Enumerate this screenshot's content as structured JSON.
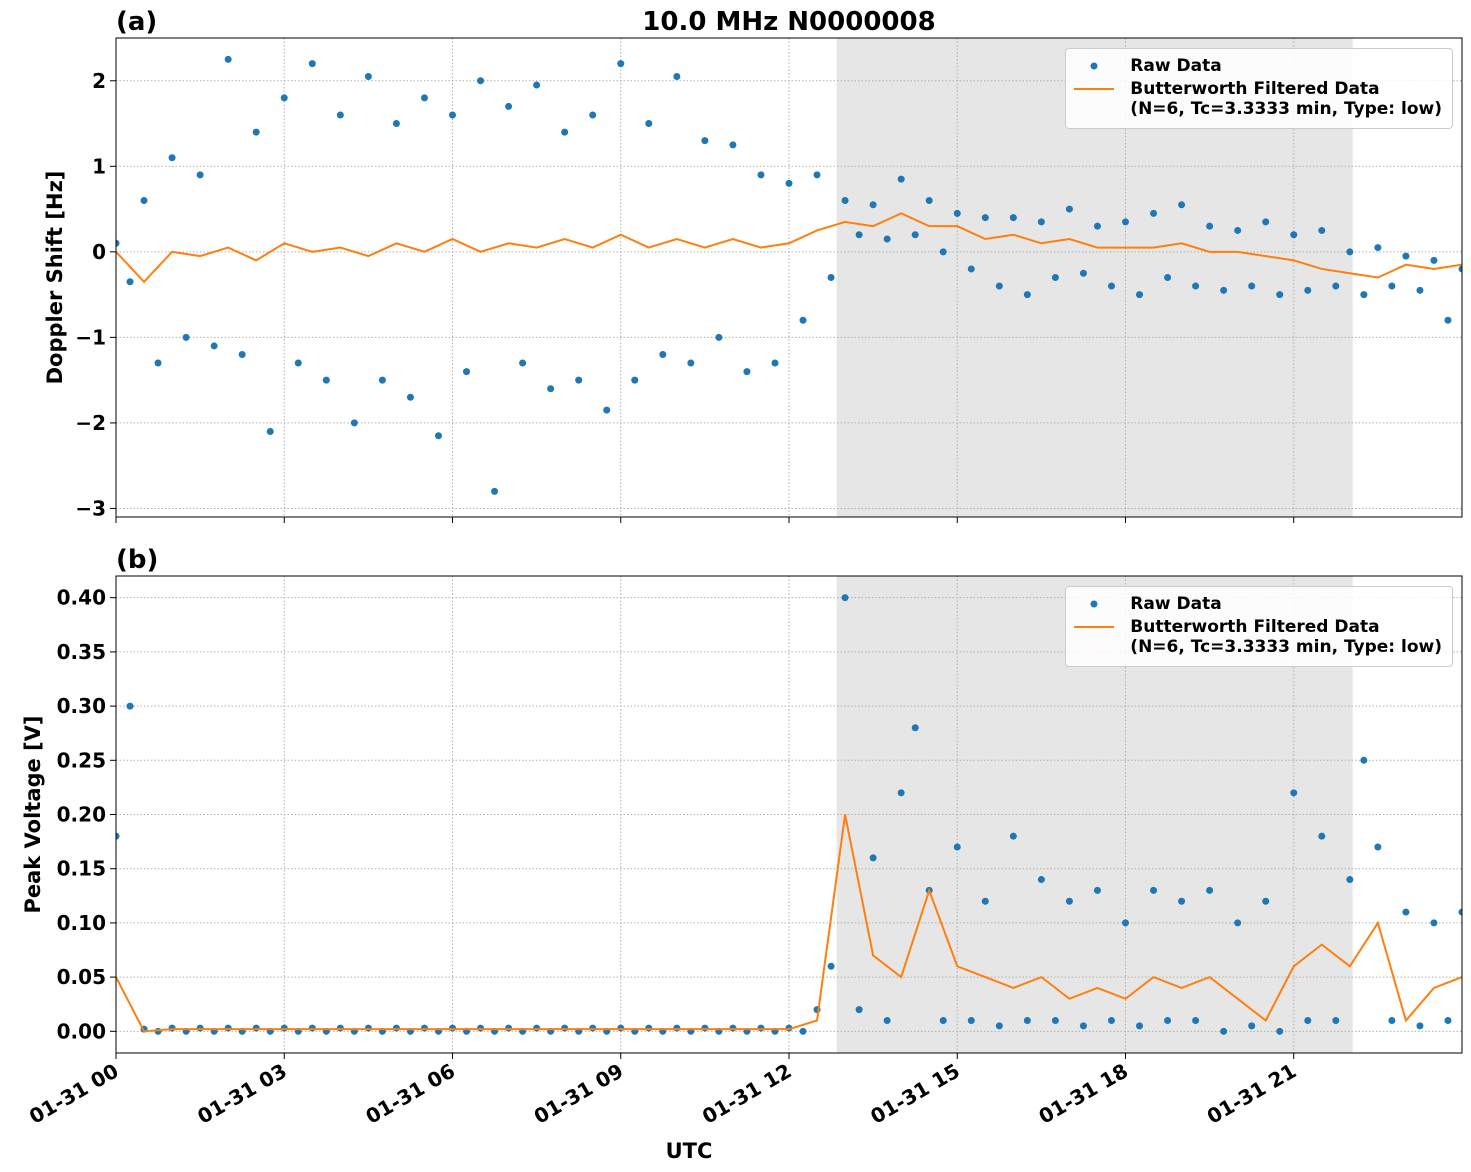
{
  "chart_data": [
    {
      "type": "scatter",
      "title": "10.0 MHz N0000008",
      "panel_label": "(a)",
      "ylabel": "Doppler Shift [Hz]",
      "xlim": [
        0,
        24
      ],
      "ylim": [
        -3.1,
        2.5
      ],
      "yticks": [
        {
          "value": -3,
          "label": "−3"
        },
        {
          "value": -2,
          "label": "−2"
        },
        {
          "value": -1,
          "label": "−1"
        },
        0,
        1,
        2
      ],
      "grid": true,
      "shaded_span": [
        12.85,
        22.05
      ],
      "shade_color": "#e6e6e6",
      "legend": "upper right",
      "series": [
        {
          "name": "Raw Data",
          "type": "scatter",
          "color": "#1f77b4",
          "x": [
            0,
            0.25,
            0.5,
            0.75,
            1,
            1.25,
            1.5,
            1.75,
            2,
            2.25,
            2.5,
            2.75,
            3,
            3.25,
            3.5,
            3.75,
            4,
            4.25,
            4.5,
            4.75,
            5,
            5.25,
            5.5,
            5.75,
            6,
            6.25,
            6.5,
            6.75,
            7,
            7.25,
            7.5,
            7.75,
            8,
            8.25,
            8.5,
            8.75,
            9,
            9.25,
            9.5,
            9.75,
            10,
            10.25,
            10.5,
            10.75,
            11,
            11.25,
            11.5,
            11.75,
            12,
            12.25,
            12.5,
            12.75,
            13,
            13.25,
            13.5,
            13.75,
            14,
            14.25,
            14.5,
            14.75,
            15,
            15.25,
            15.5,
            15.75,
            16,
            16.25,
            16.5,
            16.75,
            17,
            17.25,
            17.5,
            17.75,
            18,
            18.25,
            18.5,
            18.75,
            19,
            19.25,
            19.5,
            19.75,
            20,
            20.25,
            20.5,
            20.75,
            21,
            21.25,
            21.5,
            21.75,
            22,
            22.25,
            22.5,
            22.75,
            23,
            23.25,
            23.5,
            23.75,
            24
          ],
          "values": [
            0.1,
            -0.35,
            0.6,
            -1.3,
            1.1,
            -1.0,
            0.9,
            -1.1,
            2.25,
            -1.2,
            1.4,
            -2.1,
            1.8,
            -1.3,
            2.2,
            -1.5,
            1.6,
            -2.0,
            2.05,
            -1.5,
            1.5,
            -1.7,
            1.8,
            -2.15,
            1.6,
            -1.4,
            2.0,
            -2.8,
            1.7,
            -1.3,
            1.95,
            -1.6,
            1.4,
            -1.5,
            1.6,
            -1.85,
            2.2,
            -1.5,
            1.5,
            -1.2,
            2.05,
            -1.3,
            1.3,
            -1.0,
            1.25,
            -1.4,
            0.9,
            -1.3,
            0.8,
            -0.8,
            0.9,
            -0.3,
            0.6,
            0.2,
            0.55,
            0.15,
            0.85,
            0.2,
            0.6,
            0.0,
            0.45,
            -0.2,
            0.4,
            -0.4,
            0.4,
            -0.5,
            0.35,
            -0.3,
            0.5,
            -0.25,
            0.3,
            -0.4,
            0.35,
            -0.5,
            0.45,
            -0.3,
            0.55,
            -0.4,
            0.3,
            -0.45,
            0.25,
            -0.4,
            0.35,
            -0.5,
            0.2,
            -0.45,
            0.25,
            -0.4,
            0.0,
            -0.5,
            0.05,
            -0.4,
            -0.05,
            -0.45,
            -0.1,
            -0.8,
            -0.2
          ]
        },
        {
          "name": "Butterworth Filtered Data\n(N=6, Tc=3.3333 min, Type: low)",
          "type": "line",
          "color": "#ff7f0e",
          "x": [
            0,
            0.5,
            1,
            1.5,
            2,
            2.5,
            3,
            3.5,
            4,
            4.5,
            5,
            5.5,
            6,
            6.5,
            7,
            7.5,
            8,
            8.5,
            9,
            9.5,
            10,
            10.5,
            11,
            11.5,
            12,
            12.5,
            13,
            13.5,
            14,
            14.5,
            15,
            15.5,
            16,
            16.5,
            17,
            17.5,
            18,
            18.5,
            19,
            19.5,
            20,
            20.5,
            21,
            21.5,
            22,
            22.5,
            23,
            23.5,
            24
          ],
          "values": [
            0.0,
            -0.35,
            0.0,
            -0.05,
            0.05,
            -0.1,
            0.1,
            0.0,
            0.05,
            -0.05,
            0.1,
            0.0,
            0.15,
            0.0,
            0.1,
            0.05,
            0.15,
            0.05,
            0.2,
            0.05,
            0.15,
            0.05,
            0.15,
            0.05,
            0.1,
            0.25,
            0.35,
            0.3,
            0.45,
            0.3,
            0.3,
            0.15,
            0.2,
            0.1,
            0.15,
            0.05,
            0.05,
            0.05,
            0.1,
            0.0,
            0.0,
            -0.05,
            -0.1,
            -0.2,
            -0.25,
            -0.3,
            -0.15,
            -0.2,
            -0.15
          ]
        }
      ]
    },
    {
      "type": "scatter",
      "panel_label": "(b)",
      "ylabel": "Peak Voltage [V]",
      "xlabel": "UTC",
      "xlim": [
        0,
        24
      ],
      "ylim": [
        -0.02,
        0.42
      ],
      "xticks": [
        {
          "value": 0,
          "label": "01-31 00"
        },
        {
          "value": 3,
          "label": "01-31 03"
        },
        {
          "value": 6,
          "label": "01-31 06"
        },
        {
          "value": 9,
          "label": "01-31 09"
        },
        {
          "value": 12,
          "label": "01-31 12"
        },
        {
          "value": 15,
          "label": "01-31 15"
        },
        {
          "value": 18,
          "label": "01-31 18"
        },
        {
          "value": 21,
          "label": "01-31 21"
        }
      ],
      "yticks": [
        {
          "value": 0,
          "label": "0.00"
        },
        0.05,
        {
          "value": 0.1,
          "label": "0.10"
        },
        0.15,
        {
          "value": 0.2,
          "label": "0.20"
        },
        0.25,
        {
          "value": 0.3,
          "label": "0.30"
        },
        0.35,
        {
          "value": 0.4,
          "label": "0.40"
        }
      ],
      "grid": true,
      "shaded_span": [
        12.85,
        22.05
      ],
      "shade_color": "#e6e6e6",
      "legend": "upper right",
      "series": [
        {
          "name": "Raw Data",
          "type": "scatter",
          "color": "#1f77b4",
          "x": [
            0,
            0.25,
            0.5,
            0.75,
            1,
            1.25,
            1.5,
            1.75,
            2,
            2.25,
            2.5,
            2.75,
            3,
            3.25,
            3.5,
            3.75,
            4,
            4.25,
            4.5,
            4.75,
            5,
            5.25,
            5.5,
            5.75,
            6,
            6.25,
            6.5,
            6.75,
            7,
            7.25,
            7.5,
            7.75,
            8,
            8.25,
            8.5,
            8.75,
            9,
            9.25,
            9.5,
            9.75,
            10,
            10.25,
            10.5,
            10.75,
            11,
            11.25,
            11.5,
            11.75,
            12,
            12.25,
            12.5,
            12.75,
            13,
            13.25,
            13.5,
            13.75,
            14,
            14.25,
            14.5,
            14.75,
            15,
            15.25,
            15.5,
            15.75,
            16,
            16.25,
            16.5,
            16.75,
            17,
            17.25,
            17.5,
            17.75,
            18,
            18.25,
            18.5,
            18.75,
            19,
            19.25,
            19.5,
            19.75,
            20,
            20.25,
            20.5,
            20.75,
            21,
            21.25,
            21.5,
            21.75,
            22,
            22.25,
            22.5,
            22.75,
            23,
            23.25,
            23.5,
            23.75,
            24
          ],
          "values": [
            0.18,
            0.3,
            0.002,
            0.0,
            0.003,
            0.0,
            0.003,
            0.0,
            0.003,
            0.0,
            0.003,
            0.0,
            0.003,
            0.0,
            0.003,
            0.0,
            0.003,
            0.0,
            0.003,
            0.0,
            0.003,
            0.0,
            0.003,
            0.0,
            0.003,
            0.0,
            0.003,
            0.0,
            0.003,
            0.0,
            0.003,
            0.0,
            0.003,
            0.0,
            0.003,
            0.0,
            0.003,
            0.0,
            0.003,
            0.0,
            0.003,
            0.0,
            0.003,
            0.0,
            0.003,
            0.0,
            0.003,
            0.0,
            0.003,
            0.0,
            0.02,
            0.06,
            0.4,
            0.02,
            0.16,
            0.01,
            0.22,
            0.28,
            0.13,
            0.01,
            0.17,
            0.01,
            0.12,
            0.005,
            0.18,
            0.01,
            0.14,
            0.01,
            0.12,
            0.005,
            0.13,
            0.01,
            0.1,
            0.005,
            0.13,
            0.01,
            0.12,
            0.01,
            0.13,
            0.0,
            0.1,
            0.005,
            0.12,
            0.0,
            0.22,
            0.01,
            0.18,
            0.01,
            0.14,
            0.25,
            0.17,
            0.01,
            0.11,
            0.005,
            0.1,
            0.01,
            0.11
          ]
        },
        {
          "name": "Butterworth Filtered Data\n(N=6, Tc=3.3333 min, Type: low)",
          "type": "line",
          "color": "#ff7f0e",
          "x": [
            0,
            0.5,
            1,
            1.5,
            2,
            2.5,
            3,
            3.5,
            4,
            4.5,
            5,
            5.5,
            6,
            6.5,
            7,
            7.5,
            8,
            8.5,
            9,
            9.5,
            10,
            10.5,
            11,
            11.5,
            12,
            12.5,
            13,
            13.5,
            14,
            14.5,
            15,
            15.5,
            16,
            16.5,
            17,
            17.5,
            18,
            18.5,
            19,
            19.5,
            20,
            20.5,
            21,
            21.5,
            22,
            22.5,
            23,
            23.5,
            24
          ],
          "values": [
            0.05,
            0.0,
            0.002,
            0.002,
            0.002,
            0.002,
            0.002,
            0.002,
            0.002,
            0.002,
            0.002,
            0.002,
            0.002,
            0.002,
            0.002,
            0.002,
            0.002,
            0.002,
            0.002,
            0.002,
            0.002,
            0.002,
            0.002,
            0.002,
            0.002,
            0.01,
            0.2,
            0.07,
            0.05,
            0.13,
            0.06,
            0.05,
            0.04,
            0.05,
            0.03,
            0.04,
            0.03,
            0.05,
            0.04,
            0.05,
            0.03,
            0.01,
            0.06,
            0.08,
            0.06,
            0.1,
            0.01,
            0.04,
            0.05
          ]
        }
      ]
    }
  ]
}
